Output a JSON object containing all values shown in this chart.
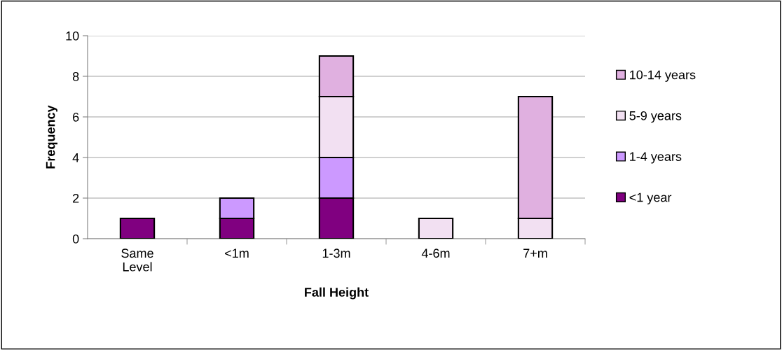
{
  "chart_data": {
    "type": "bar",
    "stacked": true,
    "xlabel": "Fall Height",
    "ylabel": "Frequency",
    "categories": [
      "Same Level",
      "<1m",
      "1-3m",
      "4-6m",
      "7+m"
    ],
    "series": [
      {
        "name": "<1 year",
        "color": "#800080",
        "values": [
          1,
          1,
          2,
          0,
          0
        ]
      },
      {
        "name": "1-4 years",
        "color": "#cc99ff",
        "values": [
          0,
          1,
          2,
          0,
          0
        ]
      },
      {
        "name": "5-9 years",
        "color": "#f2e0f2",
        "values": [
          0,
          0,
          3,
          1,
          1
        ]
      },
      {
        "name": "10-14 years",
        "color": "#e0b0e0",
        "values": [
          0,
          0,
          2,
          0,
          6
        ]
      }
    ],
    "ylim": [
      0,
      10
    ],
    "yticks": [
      0,
      2,
      4,
      6,
      8,
      10
    ],
    "grid": "y",
    "legend": "right"
  }
}
